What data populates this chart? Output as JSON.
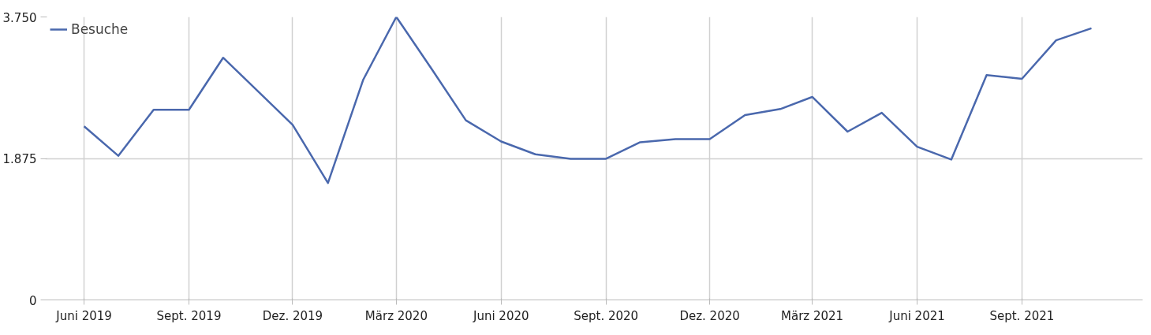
{
  "chart_data": {
    "type": "line",
    "x": [
      "2019-06",
      "2019-07",
      "2019-08",
      "2019-09",
      "2019-10",
      "2019-11",
      "2019-12",
      "2020-01",
      "2020-02",
      "2020-03",
      "2020-04",
      "2020-05",
      "2020-06",
      "2020-07",
      "2020-08",
      "2020-09",
      "2020-10",
      "2020-11",
      "2020-12",
      "2021-01",
      "2021-02",
      "2021-03",
      "2021-04",
      "2021-05",
      "2021-06",
      "2021-07",
      "2021-08",
      "2021-09",
      "2021-10",
      "2021-11"
    ],
    "series": [
      {
        "name": "Besuche",
        "color": "#4a68ad",
        "values": [
          2300,
          1910,
          2520,
          2520,
          3210,
          2760,
          2320,
          1550,
          2920,
          3750,
          3060,
          2380,
          2100,
          1930,
          1870,
          1870,
          2090,
          2130,
          2130,
          2450,
          2530,
          2690,
          2230,
          2480,
          2030,
          1860,
          2980,
          2930,
          3440,
          3600
        ]
      }
    ],
    "xlim": [
      "2019-04-28",
      "2021-12-16"
    ],
    "xticks": [
      {
        "value": "2019-06",
        "label": "Juni 2019"
      },
      {
        "value": "2019-09",
        "label": "Sept. 2019"
      },
      {
        "value": "2019-12",
        "label": "Dez. 2019"
      },
      {
        "value": "2020-03",
        "label": "März 2020"
      },
      {
        "value": "2020-06",
        "label": "Juni 2020"
      },
      {
        "value": "2020-09",
        "label": "Sept. 2020"
      },
      {
        "value": "2020-12",
        "label": "Dez. 2020"
      },
      {
        "value": "2021-03",
        "label": "März 2021"
      },
      {
        "value": "2021-06",
        "label": "Juni 2021"
      },
      {
        "value": "2021-09",
        "label": "Sept. 2021"
      }
    ],
    "ylim": [
      0,
      3750
    ],
    "yticks": [
      0,
      {
        "value": 1875,
        "label": "1.875"
      },
      {
        "value": 3750,
        "label": "3.750"
      }
    ],
    "grid": true,
    "legend": "top left",
    "marker": "none",
    "line_style": "solid"
  }
}
